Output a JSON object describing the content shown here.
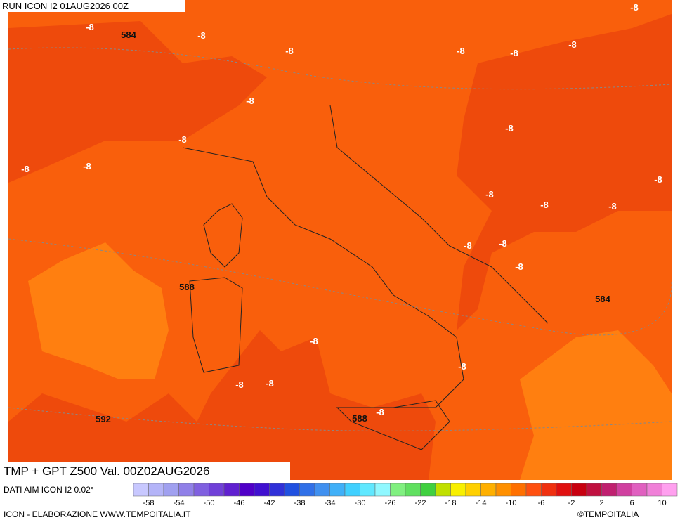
{
  "header": {
    "run": "RUN ICON I2 01AUG2026 00Z"
  },
  "map": {
    "contour_labels": [
      "-8",
      "584",
      "-8",
      "-8",
      "-8",
      "-8",
      "-8",
      "-8",
      "-8",
      "-8",
      "-8",
      "-8",
      "-8",
      "-8",
      "-8",
      "-8",
      "-8",
      "-8",
      "-8",
      "-8",
      "588",
      "584",
      "-8",
      "-8",
      "-8",
      "-8",
      "592",
      "588",
      "-8"
    ]
  },
  "footer": {
    "title": "TMP + GPT Z500 Val. 00Z02AUG2026",
    "source": "DATI AIM ICON I2 0.02°",
    "credit": "ICON - ELABORAZIONE WWW.TEMPOITALIA.IT",
    "copyright": "©TEMPOITALIA"
  },
  "legend": {
    "ticks": [
      -58,
      -54,
      -50,
      -46,
      -42,
      -38,
      -34,
      -30,
      -26,
      -22,
      -18,
      -14,
      -10,
      -6,
      -2,
      2,
      6,
      10
    ]
  }
}
